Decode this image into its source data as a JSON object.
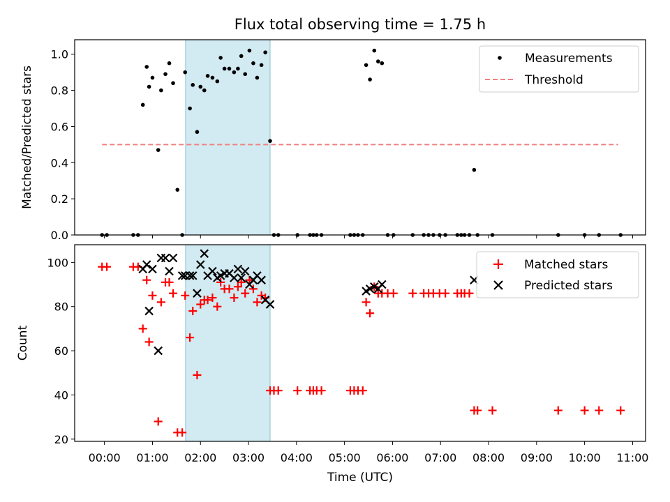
{
  "chart_data": {
    "title": "Flux total observing time = 1.75 h",
    "xlabel": "Time (UTC)",
    "x_unit": "hours UTC",
    "xlim": [
      -0.62,
      11.27
    ],
    "x_ticks": [
      {
        "value": 0,
        "label": "00:00"
      },
      {
        "value": 1,
        "label": "01:00"
      },
      {
        "value": 2,
        "label": "02:00"
      },
      {
        "value": 3,
        "label": "03:00"
      },
      {
        "value": 4,
        "label": "04:00"
      },
      {
        "value": 5,
        "label": "05:00"
      },
      {
        "value": 6,
        "label": "06:00"
      },
      {
        "value": 7,
        "label": "07:00"
      },
      {
        "value": 8,
        "label": "08:00"
      },
      {
        "value": 9,
        "label": "09:00"
      },
      {
        "value": 10,
        "label": "10:00"
      },
      {
        "value": 11,
        "label": "11:00"
      }
    ],
    "highlight_span": {
      "x_start": 1.69,
      "x_end": 3.45,
      "color": "#add8e6"
    },
    "top": {
      "type": "scatter",
      "ylabel": "Matched/Predicted stars",
      "ylim": [
        0,
        1.08
      ],
      "y_ticks": [
        "0.0",
        "0.2",
        "0.4",
        "0.6",
        "0.8",
        "1.0"
      ],
      "legend": {
        "position": "top-right",
        "measurements": "Measurements",
        "threshold": "Threshold"
      },
      "threshold": {
        "value": 0.5,
        "x_start": -0.05,
        "x_end": 10.7,
        "color": "#f08080"
      },
      "measurements": [
        [
          -0.05,
          0
        ],
        [
          0.05,
          0
        ],
        [
          0.6,
          0
        ],
        [
          0.7,
          0
        ],
        [
          0.8,
          0.72
        ],
        [
          0.88,
          0.93
        ],
        [
          0.93,
          0.82
        ],
        [
          1.0,
          0.87
        ],
        [
          1.12,
          0.47
        ],
        [
          1.18,
          0.8
        ],
        [
          1.27,
          0.89
        ],
        [
          1.35,
          0.95
        ],
        [
          1.43,
          0.84
        ],
        [
          1.52,
          0.25
        ],
        [
          1.62,
          0
        ],
        [
          1.68,
          0.9
        ],
        [
          1.78,
          0.7
        ],
        [
          1.84,
          0.83
        ],
        [
          1.93,
          0.57
        ],
        [
          2.0,
          0.82
        ],
        [
          2.08,
          0.8
        ],
        [
          2.15,
          0.88
        ],
        [
          2.25,
          0.87
        ],
        [
          2.35,
          0.85
        ],
        [
          2.42,
          0.98
        ],
        [
          2.5,
          0.92
        ],
        [
          2.6,
          0.92
        ],
        [
          2.7,
          0.9
        ],
        [
          2.78,
          0.92
        ],
        [
          2.85,
          0.99
        ],
        [
          2.93,
          0.89
        ],
        [
          3.02,
          1.02
        ],
        [
          3.1,
          0.95
        ],
        [
          3.18,
          0.87
        ],
        [
          3.27,
          0.94
        ],
        [
          3.35,
          1.01
        ],
        [
          3.45,
          0.52
        ],
        [
          3.53,
          0
        ],
        [
          3.62,
          0
        ],
        [
          4.02,
          0
        ],
        [
          4.28,
          0
        ],
        [
          4.35,
          0
        ],
        [
          4.42,
          0
        ],
        [
          4.52,
          0
        ],
        [
          5.12,
          0
        ],
        [
          5.2,
          0
        ],
        [
          5.28,
          0
        ],
        [
          5.38,
          0
        ],
        [
          5.45,
          0.94
        ],
        [
          5.53,
          0.86
        ],
        [
          5.62,
          1.02
        ],
        [
          5.7,
          0.96
        ],
        [
          5.78,
          0.95
        ],
        [
          5.9,
          0
        ],
        [
          6.02,
          0
        ],
        [
          6.42,
          0
        ],
        [
          6.65,
          0
        ],
        [
          6.75,
          0
        ],
        [
          6.85,
          0
        ],
        [
          6.98,
          0
        ],
        [
          7.1,
          0
        ],
        [
          7.35,
          0
        ],
        [
          7.43,
          0
        ],
        [
          7.5,
          0
        ],
        [
          7.6,
          0
        ],
        [
          7.7,
          0.36
        ],
        [
          7.77,
          0
        ],
        [
          8.08,
          0
        ],
        [
          9.45,
          0
        ],
        [
          10.0,
          0
        ],
        [
          10.3,
          0
        ],
        [
          10.75,
          0
        ]
      ]
    },
    "bottom": {
      "type": "scatter",
      "ylabel": "Count",
      "ylim": [
        19,
        108
      ],
      "y_ticks": [
        "20",
        "40",
        "60",
        "80",
        "100"
      ],
      "legend": {
        "position": "top-right",
        "matched": "Matched stars",
        "predicted": "Predicted stars"
      },
      "matched": [
        [
          -0.05,
          98
        ],
        [
          0.05,
          98
        ],
        [
          0.6,
          98
        ],
        [
          0.7,
          98
        ],
        [
          0.8,
          70
        ],
        [
          0.88,
          92
        ],
        [
          0.93,
          64
        ],
        [
          1.0,
          85
        ],
        [
          1.12,
          28
        ],
        [
          1.18,
          82
        ],
        [
          1.27,
          91
        ],
        [
          1.35,
          91
        ],
        [
          1.43,
          86
        ],
        [
          1.52,
          23
        ],
        [
          1.62,
          23
        ],
        [
          1.68,
          85
        ],
        [
          1.78,
          66
        ],
        [
          1.84,
          78
        ],
        [
          1.93,
          49
        ],
        [
          2.0,
          81
        ],
        [
          2.08,
          83
        ],
        [
          2.15,
          83
        ],
        [
          2.25,
          84
        ],
        [
          2.35,
          80
        ],
        [
          2.42,
          91
        ],
        [
          2.5,
          88
        ],
        [
          2.6,
          88
        ],
        [
          2.7,
          84
        ],
        [
          2.78,
          89
        ],
        [
          2.85,
          91
        ],
        [
          2.93,
          86
        ],
        [
          3.02,
          92
        ],
        [
          3.1,
          88
        ],
        [
          3.18,
          82
        ],
        [
          3.27,
          85
        ],
        [
          3.35,
          84
        ],
        [
          3.45,
          42
        ],
        [
          3.53,
          42
        ],
        [
          3.62,
          42
        ],
        [
          4.02,
          42
        ],
        [
          4.28,
          42
        ],
        [
          4.35,
          42
        ],
        [
          4.42,
          42
        ],
        [
          4.52,
          42
        ],
        [
          5.12,
          42
        ],
        [
          5.2,
          42
        ],
        [
          5.28,
          42
        ],
        [
          5.38,
          42
        ],
        [
          5.45,
          82
        ],
        [
          5.53,
          77
        ],
        [
          5.62,
          89
        ],
        [
          5.7,
          86
        ],
        [
          5.78,
          86
        ],
        [
          5.9,
          86
        ],
        [
          6.02,
          86
        ],
        [
          6.42,
          86
        ],
        [
          6.65,
          86
        ],
        [
          6.75,
          86
        ],
        [
          6.85,
          86
        ],
        [
          6.98,
          86
        ],
        [
          7.1,
          86
        ],
        [
          7.35,
          86
        ],
        [
          7.43,
          86
        ],
        [
          7.5,
          86
        ],
        [
          7.6,
          86
        ],
        [
          7.7,
          33
        ],
        [
          7.77,
          33
        ],
        [
          8.08,
          33
        ],
        [
          9.45,
          33
        ],
        [
          10.0,
          33
        ],
        [
          10.3,
          33
        ],
        [
          10.75,
          33
        ]
      ],
      "predicted": [
        [
          0.8,
          97
        ],
        [
          0.88,
          99
        ],
        [
          0.93,
          78
        ],
        [
          1.0,
          97
        ],
        [
          1.12,
          60
        ],
        [
          1.18,
          102
        ],
        [
          1.27,
          102
        ],
        [
          1.35,
          96
        ],
        [
          1.43,
          102
        ],
        [
          1.62,
          94
        ],
        [
          1.68,
          94
        ],
        [
          1.78,
          94
        ],
        [
          1.84,
          94
        ],
        [
          1.93,
          86
        ],
        [
          2.0,
          99
        ],
        [
          2.08,
          104
        ],
        [
          2.15,
          94
        ],
        [
          2.25,
          96
        ],
        [
          2.35,
          93
        ],
        [
          2.42,
          94
        ],
        [
          2.5,
          95
        ],
        [
          2.6,
          95
        ],
        [
          2.7,
          93
        ],
        [
          2.78,
          97
        ],
        [
          2.85,
          93
        ],
        [
          2.93,
          96
        ],
        [
          3.02,
          90
        ],
        [
          3.1,
          92
        ],
        [
          3.18,
          94
        ],
        [
          3.27,
          92
        ],
        [
          3.35,
          83
        ],
        [
          3.45,
          81
        ],
        [
          5.45,
          87
        ],
        [
          5.53,
          88
        ],
        [
          5.62,
          89
        ],
        [
          5.7,
          88
        ],
        [
          5.78,
          90
        ],
        [
          7.7,
          92
        ]
      ]
    }
  }
}
